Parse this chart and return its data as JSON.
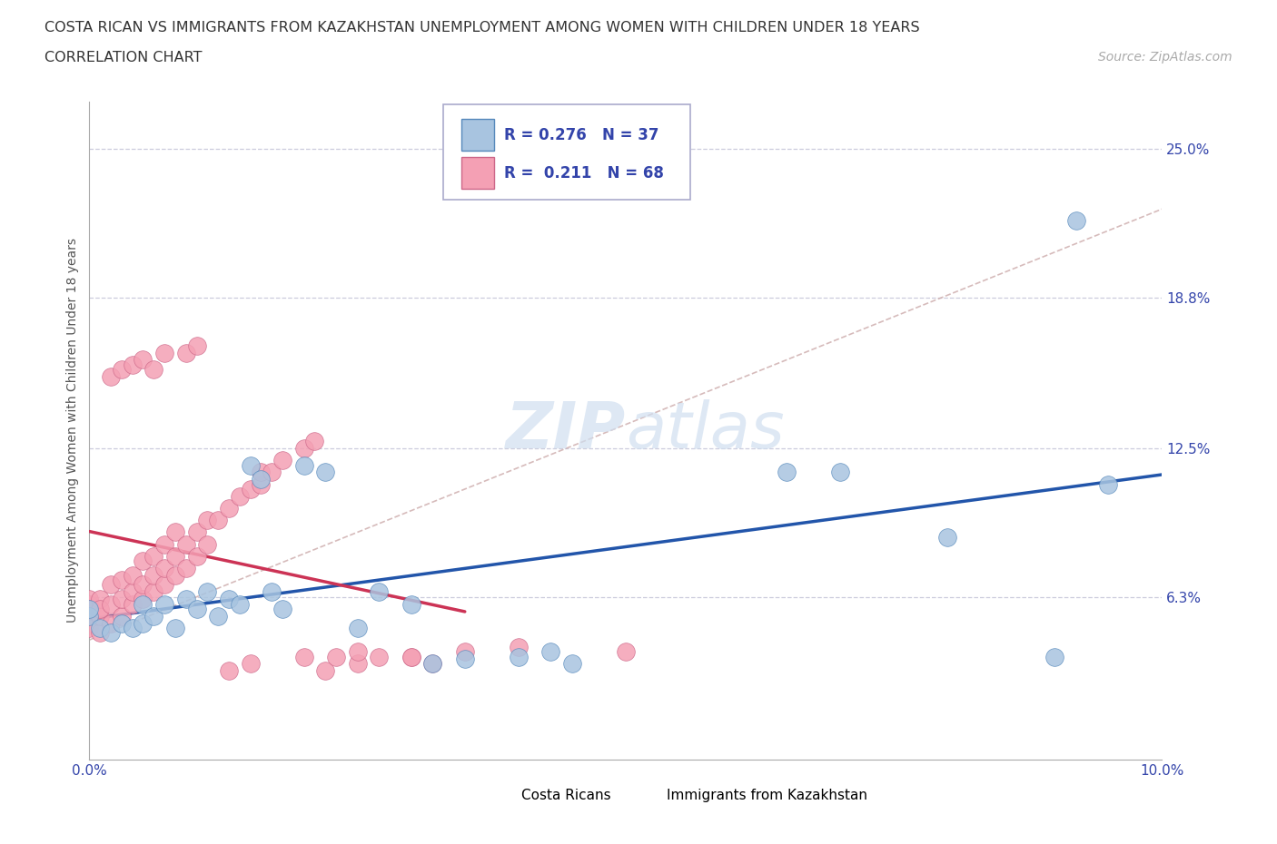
{
  "title_line1": "COSTA RICAN VS IMMIGRANTS FROM KAZAKHSTAN UNEMPLOYMENT AMONG WOMEN WITH CHILDREN UNDER 18 YEARS",
  "title_line2": "CORRELATION CHART",
  "source": "Source: ZipAtlas.com",
  "ylabel": "Unemployment Among Women with Children Under 18 years",
  "xlim": [
    0.0,
    0.1
  ],
  "ylim": [
    -0.005,
    0.27
  ],
  "ytick_values": [
    0.063,
    0.125,
    0.188,
    0.25
  ],
  "ytick_labels": [
    "6.3%",
    "12.5%",
    "18.8%",
    "25.0%"
  ],
  "xtick_values": [
    0.0,
    0.1
  ],
  "xtick_labels": [
    "0.0%",
    "10.0%"
  ],
  "costa_ricans_color": "#a8c4e0",
  "costa_ricans_edge": "#5588bb",
  "immigrants_color": "#f4a0b4",
  "immigrants_edge": "#cc6688",
  "trend_blue": "#2255aa",
  "trend_pink": "#cc3355",
  "dash_color": "#ccaaaa",
  "grid_color": "#ccccdd",
  "watermark": "ZIPatlas",
  "legend_box_color": "#aaaacc",
  "tick_color": "#3344aa",
  "cr_x": [
    0.0,
    0.0,
    0.001,
    0.002,
    0.003,
    0.004,
    0.005,
    0.005,
    0.006,
    0.007,
    0.008,
    0.009,
    0.01,
    0.011,
    0.012,
    0.013,
    0.014,
    0.015,
    0.016,
    0.017,
    0.018,
    0.02,
    0.022,
    0.025,
    0.027,
    0.03,
    0.032,
    0.035,
    0.04,
    0.043,
    0.045,
    0.065,
    0.07,
    0.08,
    0.09,
    0.092,
    0.095
  ],
  "cr_y": [
    0.055,
    0.058,
    0.05,
    0.048,
    0.052,
    0.05,
    0.052,
    0.06,
    0.055,
    0.06,
    0.05,
    0.062,
    0.058,
    0.065,
    0.055,
    0.062,
    0.06,
    0.118,
    0.112,
    0.065,
    0.058,
    0.118,
    0.115,
    0.05,
    0.065,
    0.06,
    0.035,
    0.037,
    0.038,
    0.04,
    0.035,
    0.115,
    0.115,
    0.088,
    0.038,
    0.22,
    0.11
  ],
  "imm_x": [
    0.0,
    0.0,
    0.0,
    0.0,
    0.0,
    0.001,
    0.001,
    0.001,
    0.001,
    0.002,
    0.002,
    0.002,
    0.003,
    0.003,
    0.003,
    0.004,
    0.004,
    0.004,
    0.005,
    0.005,
    0.005,
    0.006,
    0.006,
    0.006,
    0.007,
    0.007,
    0.007,
    0.008,
    0.008,
    0.008,
    0.009,
    0.009,
    0.01,
    0.01,
    0.011,
    0.011,
    0.012,
    0.013,
    0.014,
    0.015,
    0.016,
    0.016,
    0.017,
    0.018,
    0.02,
    0.021,
    0.022,
    0.023,
    0.025,
    0.027,
    0.03,
    0.032,
    0.002,
    0.003,
    0.004,
    0.005,
    0.006,
    0.007,
    0.009,
    0.01,
    0.013,
    0.015,
    0.02,
    0.025,
    0.03,
    0.035,
    0.04,
    0.05
  ],
  "imm_y": [
    0.055,
    0.06,
    0.05,
    0.062,
    0.058,
    0.048,
    0.055,
    0.062,
    0.058,
    0.052,
    0.06,
    0.068,
    0.055,
    0.062,
    0.07,
    0.06,
    0.065,
    0.072,
    0.062,
    0.068,
    0.078,
    0.065,
    0.072,
    0.08,
    0.068,
    0.075,
    0.085,
    0.072,
    0.08,
    0.09,
    0.075,
    0.085,
    0.08,
    0.09,
    0.085,
    0.095,
    0.095,
    0.1,
    0.105,
    0.108,
    0.11,
    0.115,
    0.115,
    0.12,
    0.125,
    0.128,
    0.032,
    0.038,
    0.035,
    0.038,
    0.038,
    0.035,
    0.155,
    0.158,
    0.16,
    0.162,
    0.158,
    0.165,
    0.165,
    0.168,
    0.032,
    0.035,
    0.038,
    0.04,
    0.038,
    0.04,
    0.042,
    0.04
  ]
}
